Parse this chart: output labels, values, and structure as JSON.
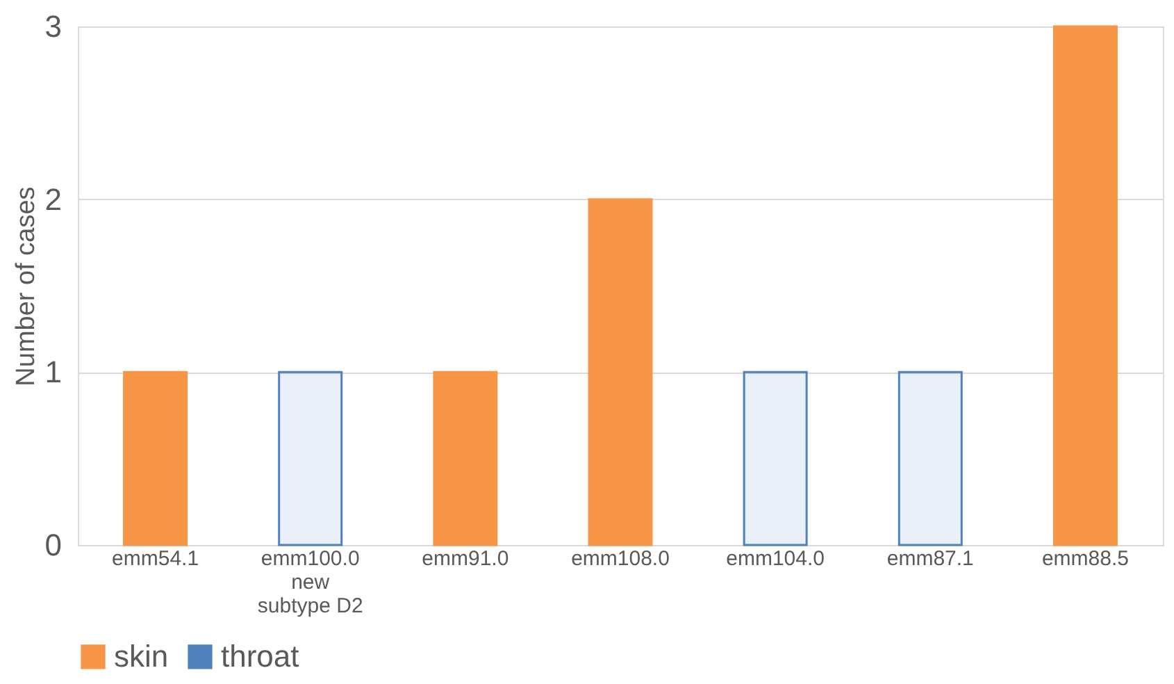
{
  "chart_data": {
    "type": "bar",
    "ylabel": "Number of cases",
    "categories": [
      "emm54.1",
      "emm100.0\nnew\nsubtype D2",
      "emm91.0",
      "emm108.0",
      "emm104.0",
      "emm87.1",
      "emm88.5"
    ],
    "series": [
      {
        "name": "skin",
        "color": "#f79646",
        "values": [
          1,
          null,
          1,
          2,
          null,
          null,
          3
        ]
      },
      {
        "name": "throat",
        "color": "#4f81bd",
        "values": [
          null,
          1,
          null,
          null,
          1,
          1,
          null
        ]
      }
    ],
    "ylim": [
      0,
      3
    ],
    "yticks": [
      0,
      1,
      2,
      3
    ],
    "grid": "y",
    "legend": "bottom"
  }
}
